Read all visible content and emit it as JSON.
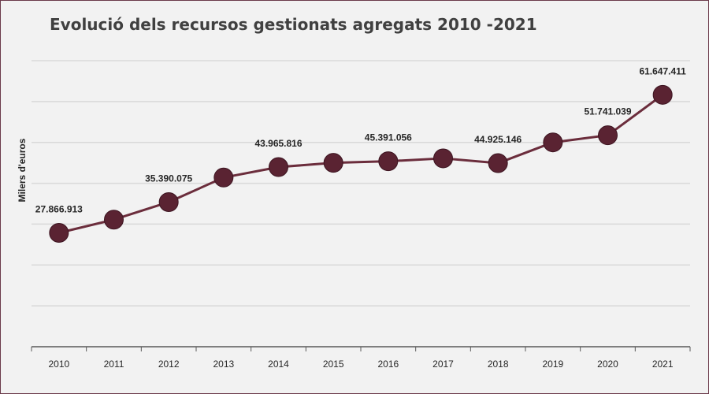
{
  "chart_data": {
    "type": "line",
    "title": "Evolució dels recursos gestionats agregats 2010 -2021",
    "xlabel": "",
    "ylabel": "Milers d'euros",
    "categories": [
      "2010",
      "2011",
      "2012",
      "2013",
      "2014",
      "2015",
      "2016",
      "2017",
      "2018",
      "2019",
      "2020",
      "2021"
    ],
    "values": [
      27866913,
      31100000,
      35390075,
      41400000,
      43965816,
      45000000,
      45391056,
      46100000,
      44925146,
      50000000,
      51741039,
      61647411
    ],
    "data_labels": [
      "27.866.913",
      "",
      "35.390.075",
      "",
      "43.965.816",
      "",
      "45.391.056",
      "",
      "44.925.146",
      "",
      "51.741.039",
      "61.647.411"
    ],
    "ylim": [
      0,
      70000000
    ],
    "grid": true,
    "legend": "none",
    "colors": {
      "line": "#6b2d3c",
      "marker": "#5a2332",
      "grid": "#d9d9d9",
      "axis": "#595959"
    }
  }
}
